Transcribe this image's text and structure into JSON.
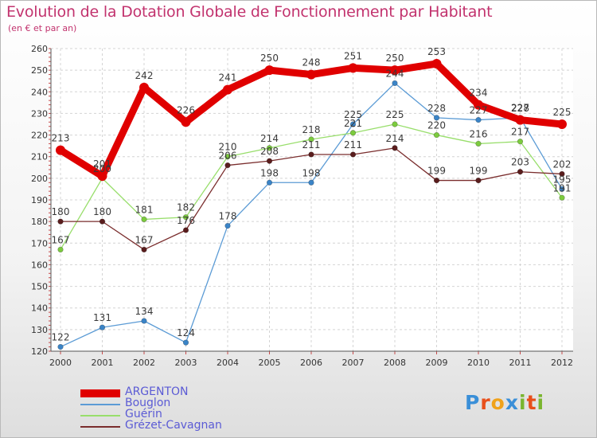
{
  "header": {
    "title": "Evolution de la Dotation Globale de Fonctionnement par Habitant",
    "subtitle": "(en € et par an)"
  },
  "logo": {
    "text": "Proxiti",
    "colors": [
      "#3a8fd8",
      "#e84f1b",
      "#f0a21a",
      "#3a8fd8",
      "#7ab52f",
      "#e84f1b",
      "#7ab52f"
    ]
  },
  "chart_data": {
    "type": "line",
    "x": [
      "2000",
      "2001",
      "2002",
      "2003",
      "2004",
      "2005",
      "2006",
      "2007",
      "2008",
      "2009",
      "2010",
      "2011",
      "2012"
    ],
    "ylim": [
      120,
      260
    ],
    "yticks": [
      120,
      130,
      140,
      150,
      160,
      170,
      180,
      190,
      200,
      210,
      220,
      230,
      240,
      250,
      260
    ],
    "grid": true,
    "legend_position": "bottom-left",
    "series": [
      {
        "name": "ARGENTON",
        "color": "#e00000",
        "emphasis": true,
        "values": [
          213,
          201,
          242,
          226,
          241,
          250,
          248,
          251,
          250,
          253,
          234,
          227,
          225
        ],
        "labels": [
          "213",
          "201",
          "242",
          "226",
          "241",
          "250",
          "248",
          "251",
          "250",
          "253",
          "234",
          "227",
          "225"
        ]
      },
      {
        "name": "Bouglon",
        "color": "#5b9bd5",
        "marker": "#3a84c7",
        "values": [
          122,
          131,
          134,
          124,
          178,
          198,
          198,
          225,
          244,
          228,
          227,
          228,
          195
        ],
        "labels": [
          "122",
          "131",
          "134",
          "124",
          "178",
          "198",
          "198",
          "225",
          "244",
          "228",
          "227",
          "228",
          "195"
        ]
      },
      {
        "name": "Guérin",
        "color": "#98de6b",
        "marker": "#7ccb3e",
        "values": [
          167,
          200,
          181,
          182,
          210,
          214,
          218,
          221,
          225,
          220,
          216,
          217,
          191
        ],
        "labels": [
          "167",
          "200",
          "181",
          "182",
          "210",
          "214",
          "218",
          "221",
          "225",
          "220",
          "216",
          "217",
          "191"
        ]
      },
      {
        "name": "Grézet-Cavagnan",
        "color": "#7a2d2d",
        "marker": "#5a1d1d",
        "values": [
          180,
          180,
          167,
          176,
          206,
          208,
          211,
          211,
          214,
          199,
          199,
          203,
          202
        ],
        "labels": [
          "180",
          "180",
          "167",
          "176",
          "206",
          "208",
          "211",
          "211",
          "214",
          "199",
          "199",
          "203",
          "202"
        ]
      }
    ]
  }
}
